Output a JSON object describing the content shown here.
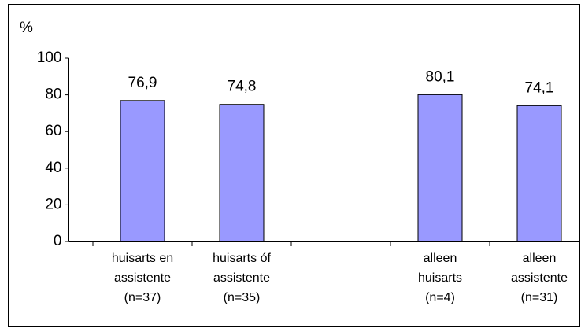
{
  "chart_data": {
    "type": "bar",
    "y_label": "%",
    "categories": [
      [
        "huisarts en",
        "assistente",
        "(n=37)"
      ],
      [
        "huisarts óf",
        "assistente",
        "(n=35)"
      ],
      null,
      [
        "alleen",
        "huisarts",
        "(n=4)"
      ],
      [
        "alleen",
        "assistente",
        "(n=31)"
      ]
    ],
    "values": [
      76.9,
      74.8,
      null,
      80.1,
      74.1
    ],
    "value_labels": [
      "76,9",
      "74,8",
      null,
      "80,1",
      "74,1"
    ],
    "color": "#9999ff",
    "ylim": [
      0,
      100
    ],
    "yticks": [
      0,
      20,
      40,
      60,
      80,
      100
    ],
    "grid": false
  }
}
